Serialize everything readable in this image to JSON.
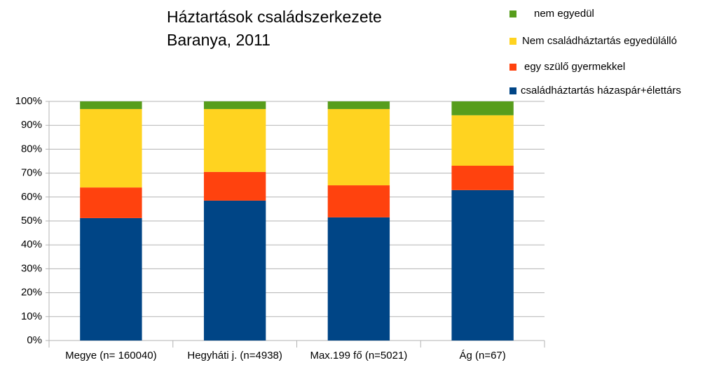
{
  "chart_data": {
    "type": "stacked_bar",
    "title": "Háztartások családszerkezete",
    "subtitle": "Baranya, 2011",
    "categories": [
      "Megye  (n= 160040)",
      "Hegyháti j. (n=4938)",
      "Max.199 fő (n=5021)",
      "Ág (n=67)"
    ],
    "series": [
      {
        "name": "családháztartás házaspár+élettárs",
        "color": "#004586",
        "values": [
          51.2,
          58.5,
          51.5,
          62.9
        ]
      },
      {
        "name": "egy szülő gyermekkel",
        "color": "#ff420e",
        "values": [
          12.8,
          12.0,
          13.4,
          10.2
        ]
      },
      {
        "name": "Nem családháztartás  egyedülálló",
        "color": "#ffd320",
        "values": [
          32.8,
          26.3,
          31.9,
          21.1
        ]
      },
      {
        "name": "nem egyedül",
        "color": "#579d1c",
        "values": [
          3.2,
          3.2,
          3.2,
          5.8
        ]
      }
    ],
    "ylim": [
      0,
      100
    ],
    "yticks": [
      {
        "value": 0,
        "label": "0%"
      },
      {
        "value": 10,
        "label": "10%"
      },
      {
        "value": 20,
        "label": "20%"
      },
      {
        "value": 30,
        "label": "30%"
      },
      {
        "value": 40,
        "label": "40%"
      },
      {
        "value": 50,
        "label": "50%"
      },
      {
        "value": 60,
        "label": "60%"
      },
      {
        "value": 70,
        "label": "70%"
      },
      {
        "value": 80,
        "label": "80%"
      },
      {
        "value": 90,
        "label": "90%"
      },
      {
        "value": 100,
        "label": "100%"
      }
    ],
    "grid": true
  }
}
